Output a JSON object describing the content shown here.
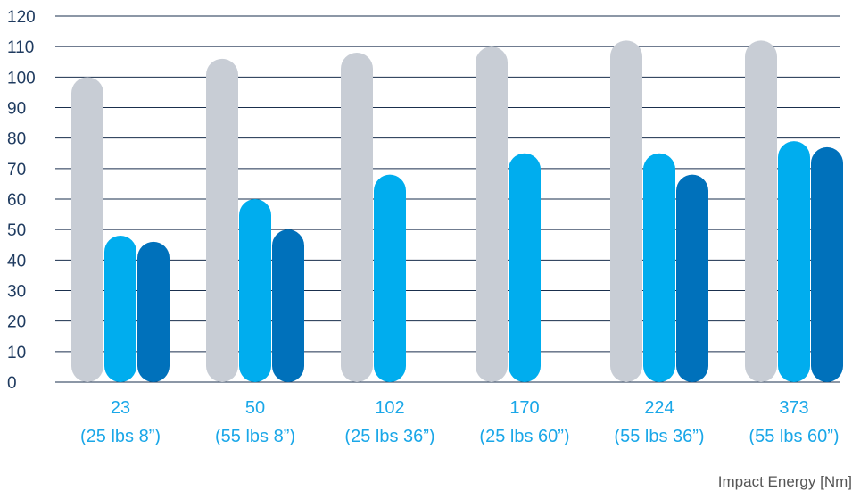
{
  "chart_data": {
    "type": "bar",
    "categories": [
      {
        "value": "23",
        "detail": "(25 lbs 8”)"
      },
      {
        "value": "50",
        "detail": "(55 lbs 8”)"
      },
      {
        "value": "102",
        "detail": "(25 lbs 36”)"
      },
      {
        "value": "170",
        "detail": "(25 lbs 60”)"
      },
      {
        "value": "224",
        "detail": "(55 lbs 36”)"
      },
      {
        "value": "373",
        "detail": "(55 lbs 60”)"
      }
    ],
    "series": [
      {
        "color": "#c8cdd5",
        "values": [
          100,
          106,
          108,
          110,
          112,
          112
        ]
      },
      {
        "color": "#00adee",
        "values": [
          48,
          60,
          68,
          75,
          75,
          79
        ]
      },
      {
        "color": "#0071bb",
        "values": [
          46,
          50,
          null,
          null,
          68,
          77
        ]
      }
    ],
    "xlabel": "Impact Energy [Nm]",
    "ylabel": "",
    "ylim": [
      0,
      120
    ],
    "yticks": [
      0,
      10,
      20,
      30,
      40,
      50,
      60,
      70,
      80,
      90,
      100,
      110,
      120
    ],
    "grid": true
  }
}
